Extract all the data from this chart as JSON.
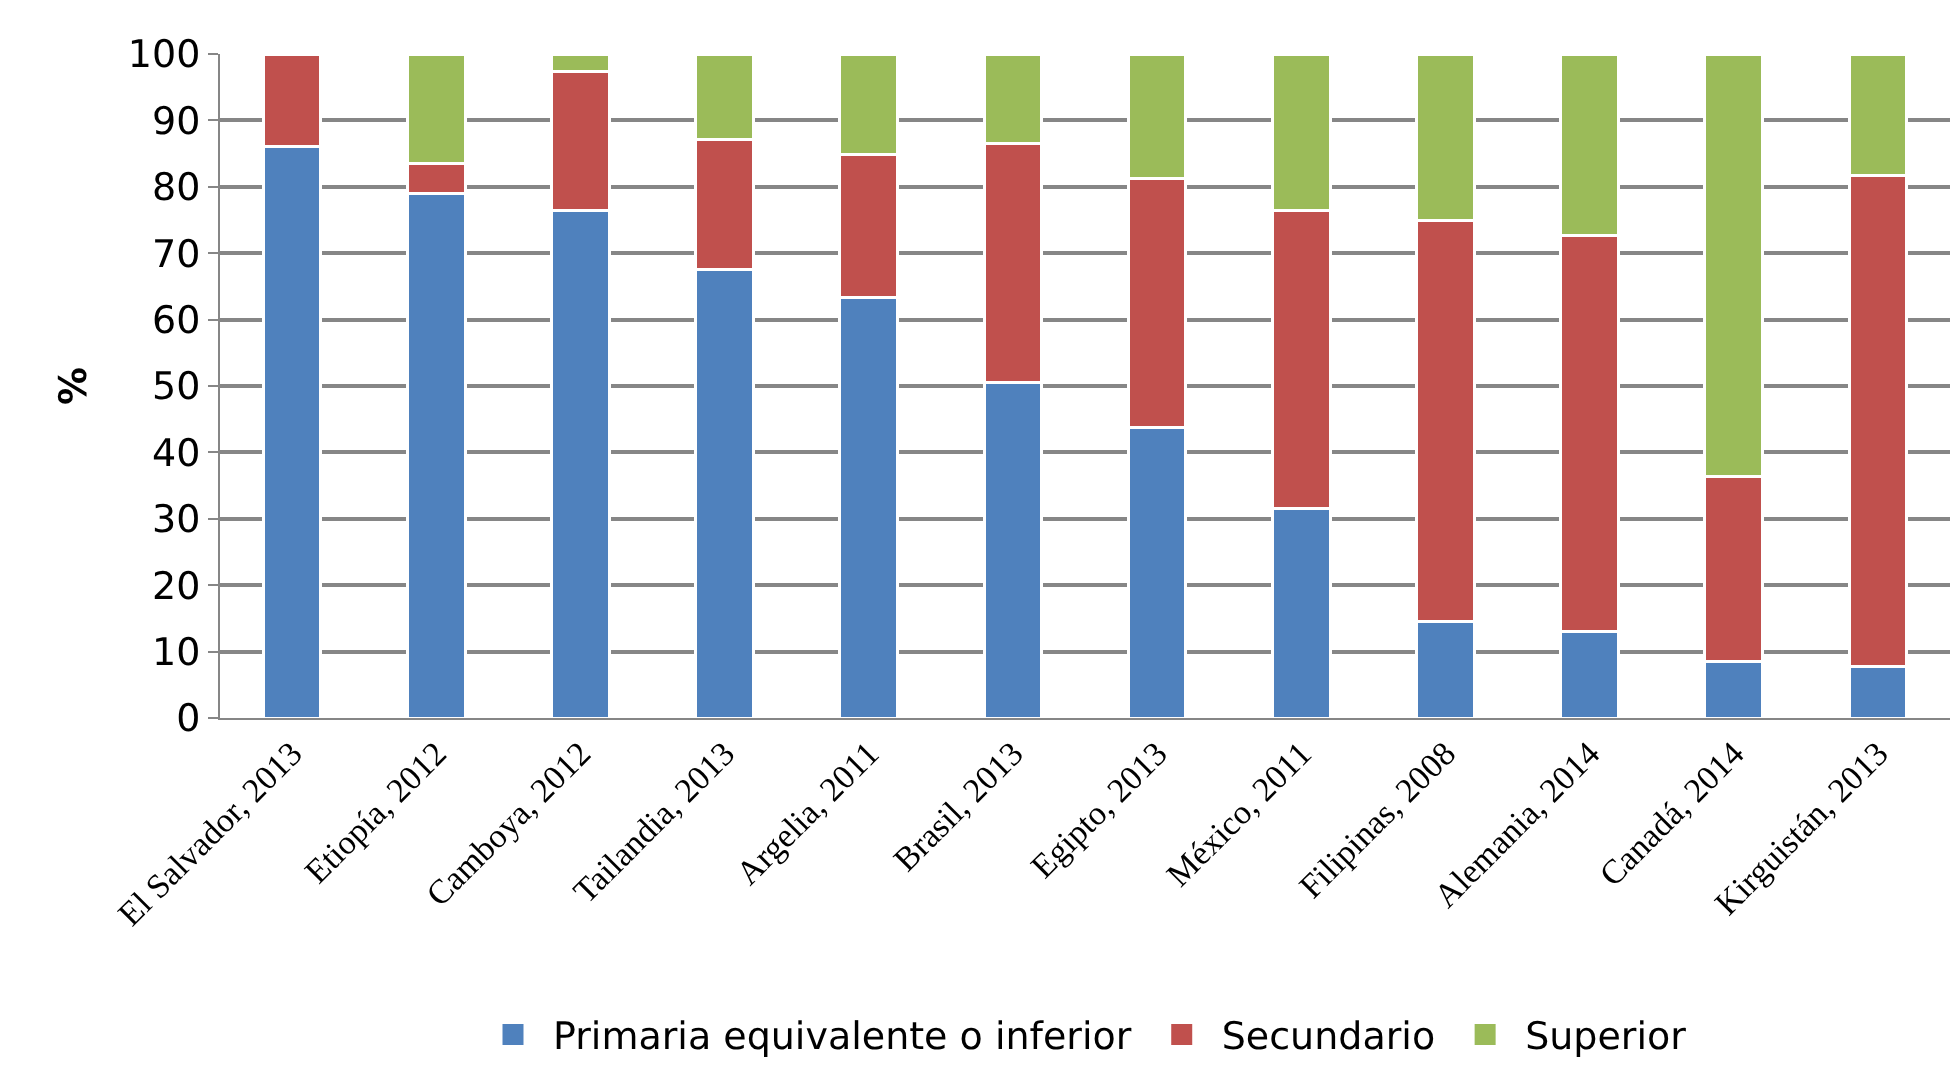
{
  "chart_data": {
    "type": "bar",
    "stacked": true,
    "ylabel": "%",
    "categories": [
      "El Salvador, 2013",
      "Etiopía, 2012",
      "Camboya, 2012",
      "Tailandia, 2013",
      "Argelia, 2011",
      "Brasil, 2013",
      "Egipto, 2013",
      "México, 2011",
      "Filipinas, 2008",
      "Alemania, 2014",
      "Canadá, 2014",
      "Kirguistán, 2013"
    ],
    "series": [
      {
        "name": "Primaria equivalente o inferior",
        "color": "#4f81bd",
        "values": [
          86,
          79,
          76.5,
          67.5,
          63.3,
          50.5,
          43.7,
          31.5,
          14.5,
          13,
          8.5,
          7.8
        ]
      },
      {
        "name": "Secundario",
        "color": "#c0504d",
        "values": [
          14,
          4.5,
          20.8,
          19.7,
          21.5,
          36,
          37.5,
          45,
          60.5,
          59.7,
          27.8,
          73.9
        ]
      },
      {
        "name": "Superior",
        "color": "#9bbb59",
        "values": [
          null,
          16.5,
          2.7,
          12.8,
          15.2,
          13.5,
          18.8,
          23.5,
          25,
          27.3,
          63.7,
          18.3
        ]
      }
    ],
    "ylim": [
      0,
      100
    ],
    "yticks": [
      0,
      10,
      20,
      30,
      40,
      50,
      60,
      70,
      80,
      90,
      100
    ],
    "grid": "y",
    "legend": "bottom"
  }
}
